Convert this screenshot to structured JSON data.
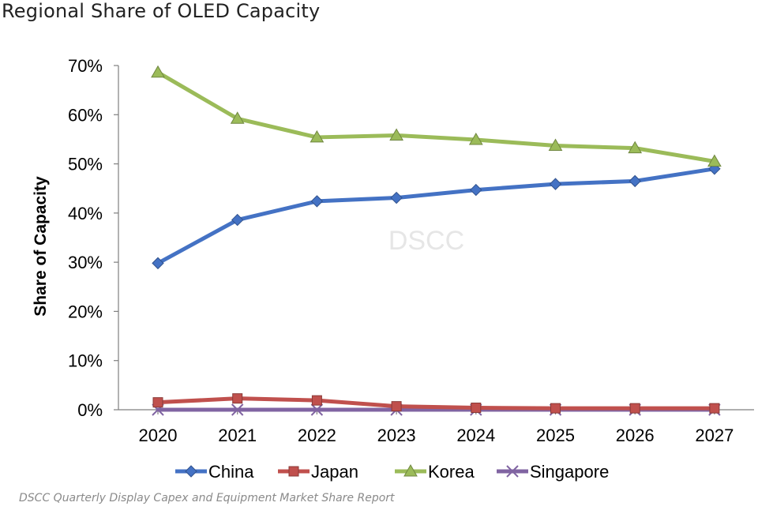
{
  "title": "Regional Share of OLED Capacity",
  "source": "DSCC Quarterly Display Capex and Equipment Market Share Report",
  "watermark": "DSCC",
  "chart_data": {
    "type": "line",
    "title": "Regional Share of OLED Capacity",
    "xlabel": "",
    "ylabel": "Share of Capacity",
    "x": [
      "2020",
      "2021",
      "2022",
      "2023",
      "2024",
      "2025",
      "2026",
      "2027"
    ],
    "y_ticks": [
      "0%",
      "10%",
      "20%",
      "30%",
      "40%",
      "50%",
      "60%",
      "70%"
    ],
    "ylim": [
      0,
      70
    ],
    "grid": false,
    "legend_position": "bottom",
    "series": [
      {
        "name": "China",
        "color": "#4472C4",
        "marker": "diamond",
        "values": [
          29.8,
          38.6,
          42.4,
          43.1,
          44.7,
          45.9,
          46.5,
          49.0
        ]
      },
      {
        "name": "Japan",
        "color": "#C0504D",
        "marker": "square",
        "values": [
          1.5,
          2.3,
          1.9,
          0.7,
          0.4,
          0.3,
          0.3,
          0.3
        ]
      },
      {
        "name": "Korea",
        "color": "#9BBB59",
        "marker": "triangle",
        "values": [
          68.6,
          59.2,
          55.4,
          55.8,
          54.9,
          53.7,
          53.2,
          50.5
        ]
      },
      {
        "name": "Singapore",
        "color": "#8064A2",
        "marker": "x",
        "values": [
          0.0,
          0.0,
          0.0,
          0.0,
          0.0,
          0.0,
          0.0,
          0.0
        ]
      }
    ]
  }
}
